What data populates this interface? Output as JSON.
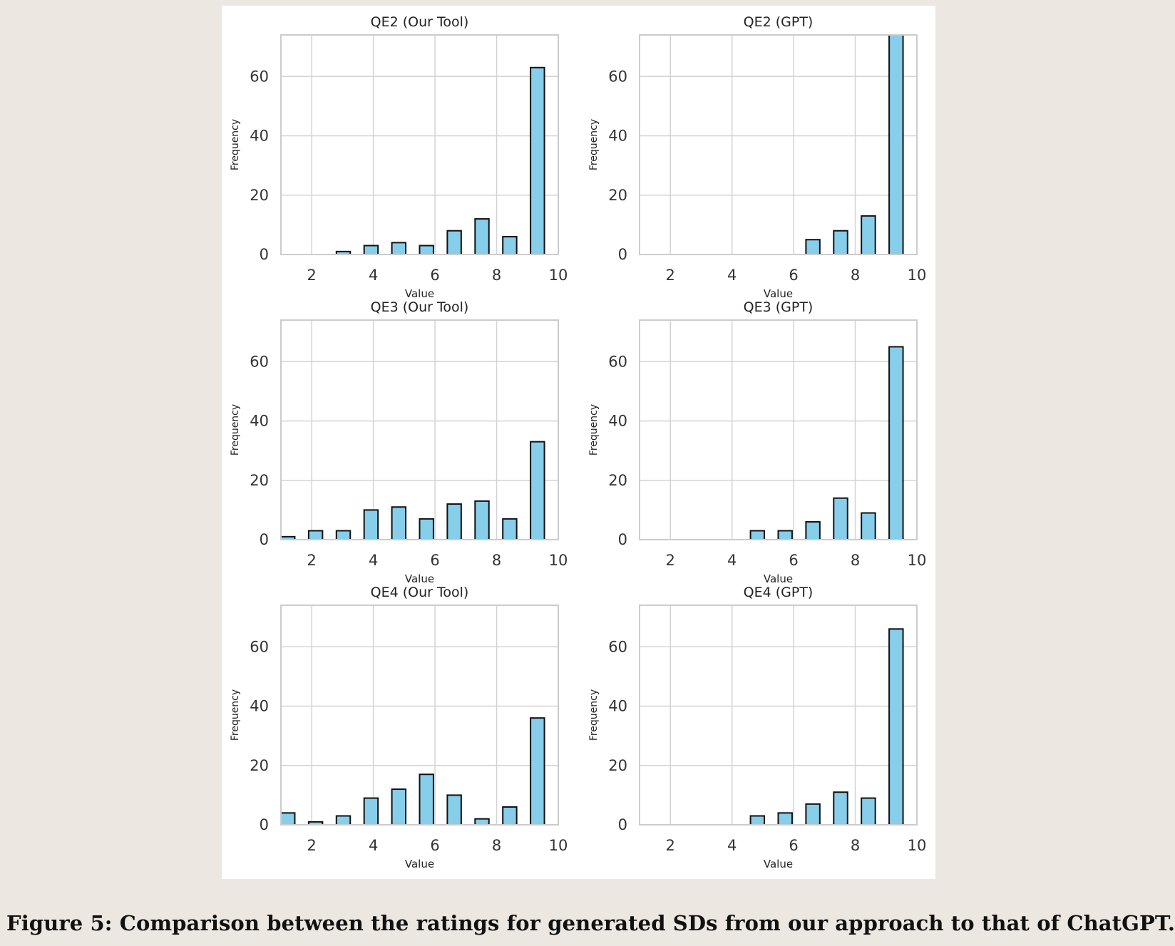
{
  "caption": "Figure 5: Comparison between the ratings for generated SDs from our approach to that of ChatGPT.",
  "colors": {
    "background": "#ece8e1",
    "panel": "#ffffff",
    "bar_fill": "#87ceeb",
    "bar_edge": "#111111",
    "grid": "#d3d3d3",
    "frame": "#cccccc"
  },
  "chart_data": [
    {
      "type": "bar",
      "title": "QE2 (Our Tool)",
      "xlabel": "Value",
      "ylabel": "Frequency",
      "x": [
        1,
        2,
        3,
        4,
        5,
        6,
        7,
        8,
        9,
        10
      ],
      "values": [
        0,
        0,
        1,
        3,
        4,
        3,
        8,
        12,
        6,
        63
      ],
      "xlim": [
        1,
        10
      ],
      "ylim": [
        0,
        74
      ],
      "xticks": [
        2,
        4,
        6,
        8,
        10
      ],
      "yticks": [
        0,
        20,
        40,
        60
      ],
      "grid": true
    },
    {
      "type": "bar",
      "title": "QE2 (GPT)",
      "xlabel": "Value",
      "ylabel": "Frequency",
      "x": [
        1,
        2,
        3,
        4,
        5,
        6,
        7,
        8,
        9,
        10
      ],
      "values": [
        0,
        0,
        0,
        0,
        0,
        0,
        5,
        8,
        13,
        74
      ],
      "xlim": [
        1,
        10
      ],
      "ylim": [
        0,
        74
      ],
      "xticks": [
        2,
        4,
        6,
        8,
        10
      ],
      "yticks": [
        0,
        20,
        40,
        60
      ],
      "grid": true
    },
    {
      "type": "bar",
      "title": "QE3 (Our Tool)",
      "xlabel": "Value",
      "ylabel": "Frequency",
      "x": [
        1,
        2,
        3,
        4,
        5,
        6,
        7,
        8,
        9,
        10
      ],
      "values": [
        1,
        3,
        3,
        10,
        11,
        7,
        12,
        13,
        7,
        33
      ],
      "xlim": [
        1,
        10
      ],
      "ylim": [
        0,
        74
      ],
      "xticks": [
        2,
        4,
        6,
        8,
        10
      ],
      "yticks": [
        0,
        20,
        40,
        60
      ],
      "grid": true
    },
    {
      "type": "bar",
      "title": "QE3 (GPT)",
      "xlabel": "Value",
      "ylabel": "Frequency",
      "x": [
        1,
        2,
        3,
        4,
        5,
        6,
        7,
        8,
        9,
        10
      ],
      "values": [
        0,
        0,
        0,
        0,
        3,
        3,
        6,
        14,
        9,
        65
      ],
      "xlim": [
        1,
        10
      ],
      "ylim": [
        0,
        74
      ],
      "xticks": [
        2,
        4,
        6,
        8,
        10
      ],
      "yticks": [
        0,
        20,
        40,
        60
      ],
      "grid": true
    },
    {
      "type": "bar",
      "title": "QE4 (Our Tool)",
      "xlabel": "Value",
      "ylabel": "Frequency",
      "x": [
        1,
        2,
        3,
        4,
        5,
        6,
        7,
        8,
        9,
        10
      ],
      "values": [
        4,
        1,
        3,
        9,
        12,
        17,
        10,
        2,
        6,
        36
      ],
      "xlim": [
        1,
        10
      ],
      "ylim": [
        0,
        74
      ],
      "xticks": [
        2,
        4,
        6,
        8,
        10
      ],
      "yticks": [
        0,
        20,
        40,
        60
      ],
      "grid": true
    },
    {
      "type": "bar",
      "title": "QE4 (GPT)",
      "xlabel": "Value",
      "ylabel": "Frequency",
      "x": [
        1,
        2,
        3,
        4,
        5,
        6,
        7,
        8,
        9,
        10
      ],
      "values": [
        0,
        0,
        0,
        0,
        3,
        4,
        7,
        11,
        9,
        66
      ],
      "xlim": [
        1,
        10
      ],
      "ylim": [
        0,
        74
      ],
      "xticks": [
        2,
        4,
        6,
        8,
        10
      ],
      "yticks": [
        0,
        20,
        40,
        60
      ],
      "grid": true
    }
  ]
}
